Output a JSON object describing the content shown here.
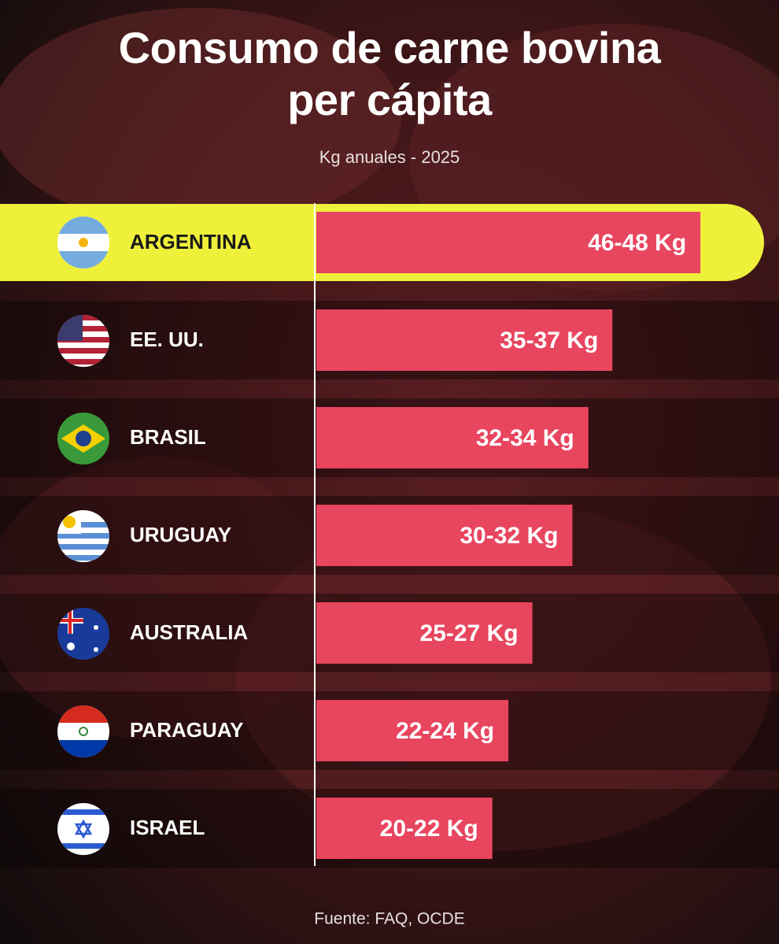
{
  "chart_data": {
    "type": "bar",
    "title": "Consumo de carne bovina per cápita",
    "subtitle": "Kg anuales  - 2025",
    "source": "Fuente: FAQ, OCDE",
    "categories": [
      "ARGENTINA",
      "EE. UU.",
      "BRASIL",
      "URUGUAY",
      "AUSTRALIA",
      "PARAGUAY",
      "ISRAEL"
    ],
    "values_low": [
      46,
      35,
      32,
      30,
      25,
      22,
      20
    ],
    "values_high": [
      48,
      37,
      34,
      32,
      27,
      24,
      22
    ],
    "value_labels": [
      "46-48 Kg",
      "35-37 Kg",
      "32-34 Kg",
      "30-32 Kg",
      "25-27 Kg",
      "22-24 Kg",
      "20-22 Kg"
    ],
    "color": "#e8455f",
    "highlight_color": "#eef03a"
  }
}
